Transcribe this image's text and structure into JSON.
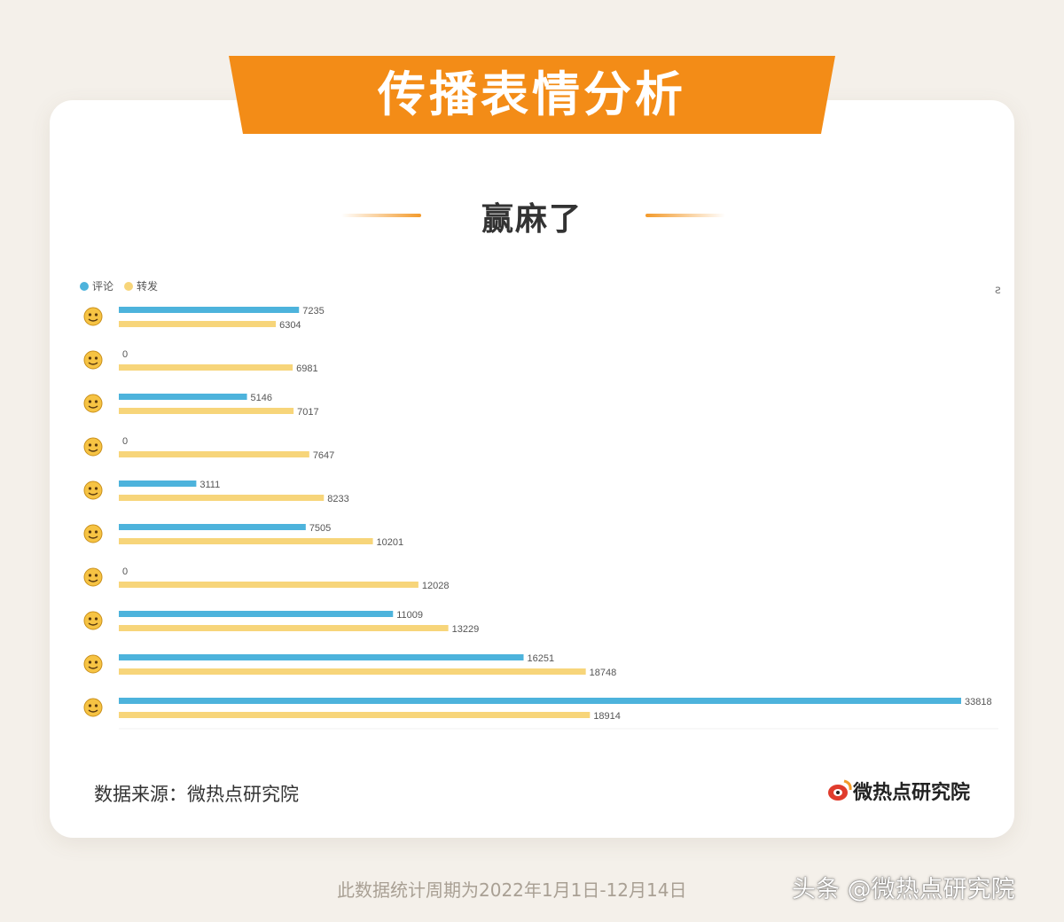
{
  "header": {
    "title": "传播表情分析"
  },
  "subtitle": "赢麻了",
  "legend": [
    {
      "label": "评论",
      "color": "#4db3dc"
    },
    {
      "label": "转发",
      "color": "#f7d57a"
    }
  ],
  "corner_glyph": "ƨ",
  "chart_data": {
    "type": "bar",
    "orientation": "horizontal",
    "categories": [
      "emoji-1",
      "emoji-2",
      "emoji-3",
      "emoji-4",
      "emoji-5",
      "emoji-6",
      "emoji-7",
      "emoji-8",
      "emoji-9",
      "emoji-10"
    ],
    "category_icons": [
      "crying-face",
      "blue-face",
      "laughing-face",
      "shrug-face",
      "kiss-face",
      "tears-of-joy",
      "clasped-hands",
      "doge-blue",
      "rolling-laugh",
      "doge-face"
    ],
    "series": [
      {
        "name": "评论",
        "color": "#4db3dc",
        "values": [
          7235,
          0,
          5146,
          0,
          3111,
          7505,
          0,
          11009,
          16251,
          33818
        ]
      },
      {
        "name": "转发",
        "color": "#f7d57a",
        "values": [
          6304,
          6981,
          7017,
          7647,
          8233,
          10201,
          12028,
          13229,
          18748,
          18914
        ]
      }
    ],
    "xlim": [
      0,
      33818
    ],
    "grid": false,
    "legend_position": "top-left"
  },
  "source": "数据来源：微热点研究院",
  "logo_text": "微热点研究院",
  "footer_note": "此数据统计周期为2022年1月1日-12月14日",
  "watermark": "头条 @微热点研究院",
  "colors": {
    "accent": "#f38c17",
    "comment": "#4db3dc",
    "repost": "#f7d57a"
  }
}
